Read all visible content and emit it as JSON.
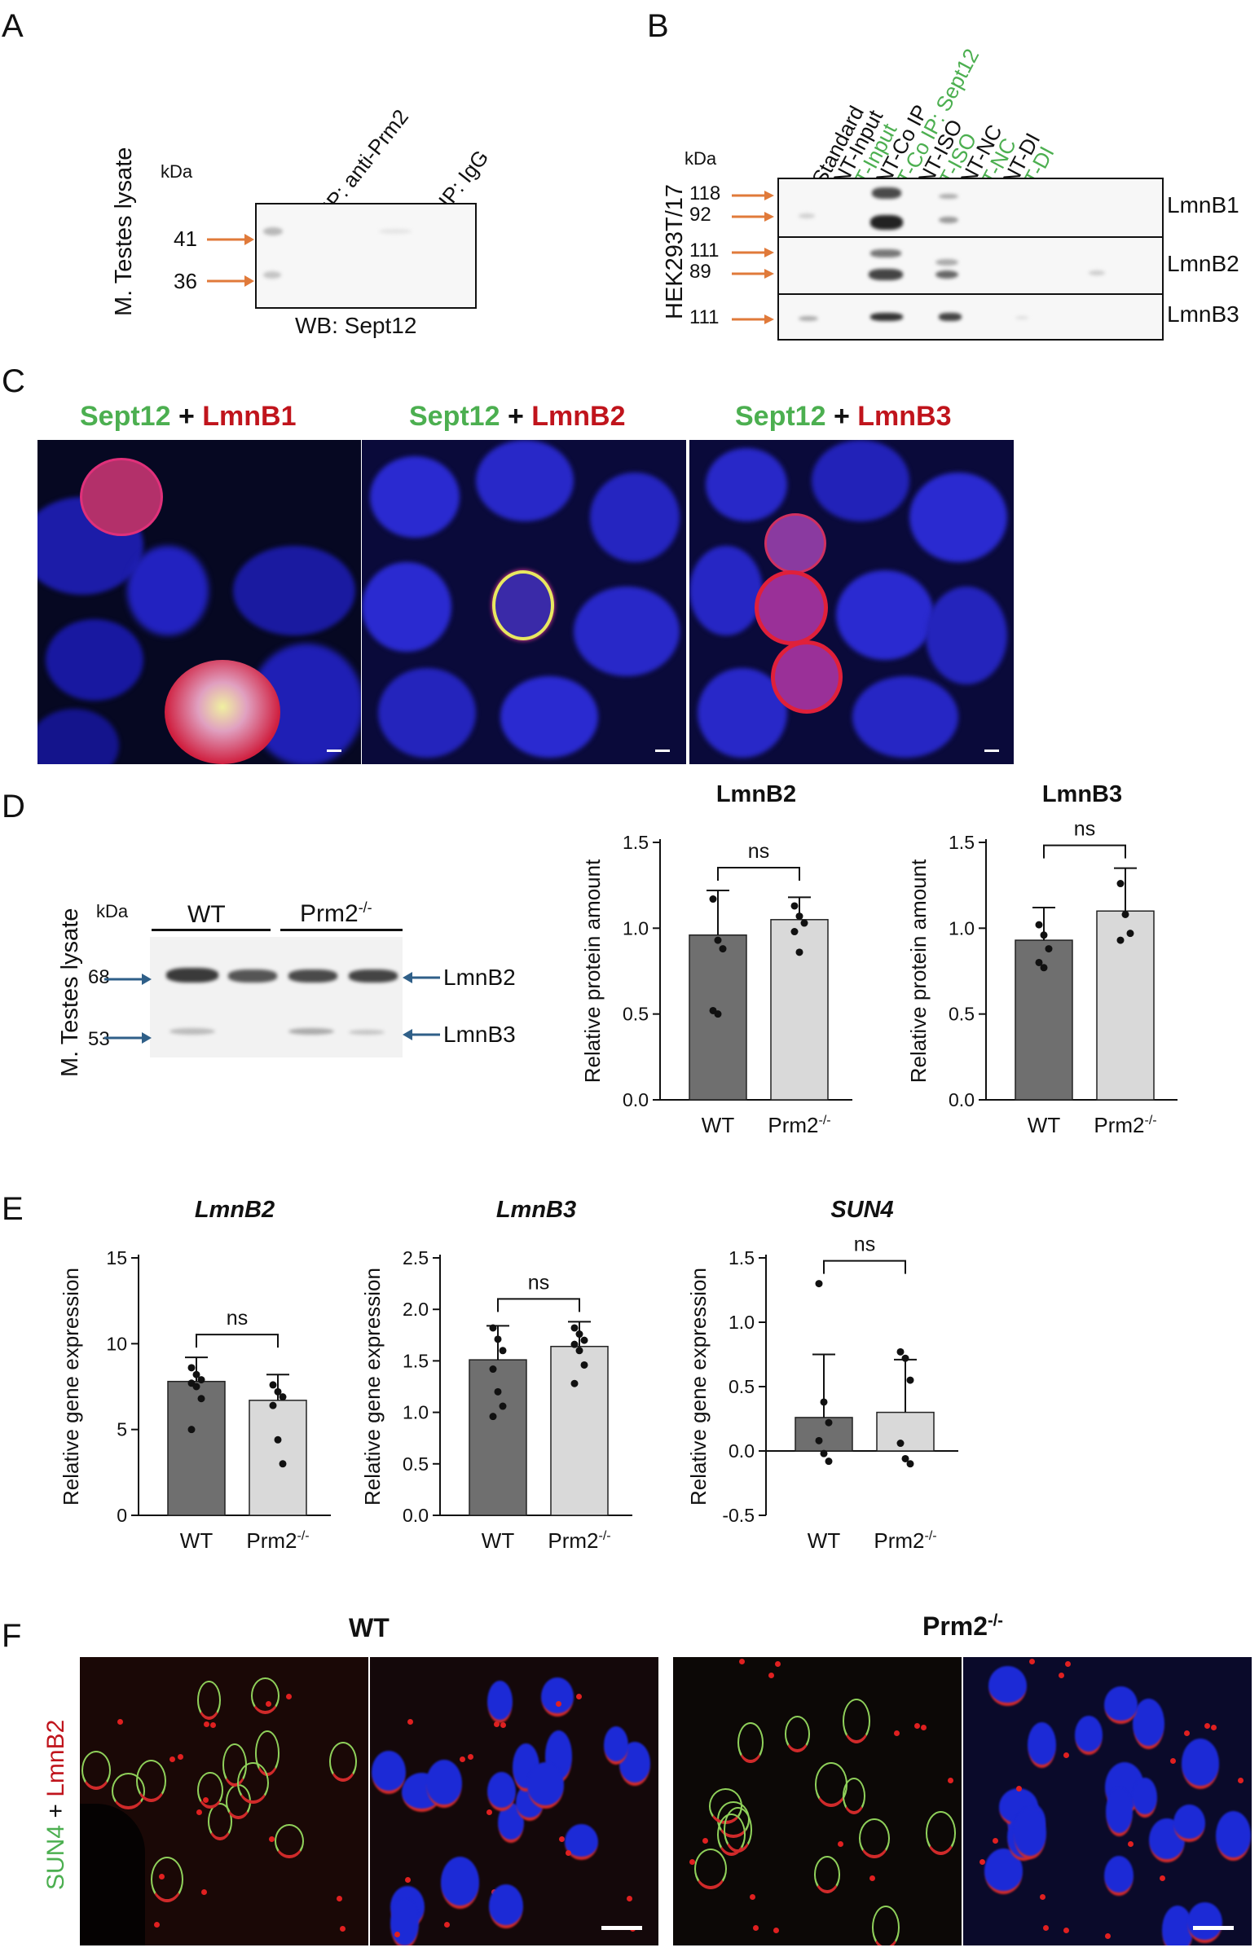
{
  "colors": {
    "green": "#4caf50",
    "red": "#c0141c",
    "arrow_orange": "#e07a3a",
    "arrow_blue": "#2f5f88",
    "bar_dark": "#6f6f6f",
    "bar_light": "#d9d9d9"
  },
  "panel_letters": {
    "a": "A",
    "b": "B",
    "c": "C",
    "d": "D",
    "e": "E",
    "f": "F"
  },
  "panel_a": {
    "side_label": "M. Testes lysate",
    "kda": "kDa",
    "markers": [
      "41",
      "36"
    ],
    "lanes": [
      "IP: anti-Prm2",
      "IP: IgG"
    ],
    "caption": "WB: Sept12"
  },
  "panel_b": {
    "side_label": "HEK293T/17",
    "kda": "kDa",
    "lanes": [
      {
        "label": "Standard",
        "color": "#111111"
      },
      {
        "label": "NT-Input",
        "color": "#111111"
      },
      {
        "label": "T-Input",
        "color": "#4caf50"
      },
      {
        "label": "NT-Co IP",
        "color": "#111111"
      },
      {
        "label": "T-Co IP: Sept12",
        "color": "#4caf50"
      },
      {
        "label": "NT-ISO",
        "color": "#111111"
      },
      {
        "label": "T-ISO",
        "color": "#4caf50"
      },
      {
        "label": "NT-NC",
        "color": "#111111"
      },
      {
        "label": "T-NC",
        "color": "#4caf50"
      },
      {
        "label": "NT-DI",
        "color": "#111111"
      },
      {
        "label": "T-DI",
        "color": "#4caf50"
      }
    ],
    "rows": [
      {
        "name": "LmnB1",
        "markers": [
          "118",
          "92"
        ]
      },
      {
        "name": "LmnB2",
        "markers": [
          "111",
          "89"
        ]
      },
      {
        "name": "LmnB3",
        "markers": [
          "111"
        ]
      }
    ]
  },
  "panel_c": {
    "titles": [
      {
        "a": "Sept12",
        "plus": " + ",
        "b": "LmnB1"
      },
      {
        "a": "Sept12",
        "plus": " + ",
        "b": "LmnB2"
      },
      {
        "a": "Sept12",
        "plus": " + ",
        "b": "LmnB3"
      }
    ]
  },
  "panel_d": {
    "side_label": "M. Testes lysate",
    "kda": "kDa",
    "groups": [
      "WT",
      "Prm2"
    ],
    "group_sup": "-/-",
    "markers": [
      "68",
      "53"
    ],
    "bands": [
      "LmnB2",
      "LmnB3"
    ]
  },
  "panel_f": {
    "row_label_a": "SUN4",
    "row_label_plus": " + ",
    "row_label_b": "LmnB2",
    "titles": [
      "WT",
      "Prm2"
    ],
    "title_sup": "-/-"
  },
  "chart_data": [
    {
      "type": "bar",
      "panel": "D",
      "title": "LmnB2",
      "italic": false,
      "categories": [
        "WT",
        "Prm2-/-"
      ],
      "values": [
        0.96,
        1.05
      ],
      "errors": [
        0.26,
        0.13
      ],
      "points": [
        [
          1.17,
          0.93,
          0.88,
          0.52,
          0.5
        ],
        [
          1.13,
          1.07,
          1.03,
          0.98,
          0.86
        ]
      ],
      "ylabel": "Relative protein amount",
      "ylim": [
        0,
        1.5
      ],
      "yticks": [
        0.0,
        0.5,
        1.0,
        1.5
      ],
      "significance": "ns"
    },
    {
      "type": "bar",
      "panel": "D",
      "title": "LmnB3",
      "italic": false,
      "categories": [
        "WT",
        "Prm2-/-"
      ],
      "values": [
        0.93,
        1.1
      ],
      "errors": [
        0.19,
        0.25
      ],
      "points": [
        [
          1.02,
          0.96,
          0.88,
          0.8,
          0.77
        ],
        [
          1.26,
          1.08,
          0.97,
          0.93
        ]
      ],
      "ylabel": "Relative protein amount",
      "ylim": [
        0,
        1.5
      ],
      "yticks": [
        0.0,
        0.5,
        1.0,
        1.5
      ],
      "significance": "ns"
    },
    {
      "type": "bar",
      "panel": "E",
      "title": "LmnB2",
      "italic": true,
      "categories": [
        "WT",
        "Prm2-/-"
      ],
      "values": [
        7.8,
        6.7
      ],
      "errors": [
        1.4,
        1.5
      ],
      "points": [
        [
          8.6,
          8.2,
          7.9,
          7.7,
          7.5,
          6.8,
          5.0
        ],
        [
          7.6,
          7.2,
          6.9,
          6.4,
          4.4,
          3.0
        ]
      ],
      "ylabel": "Relative gene expression",
      "ylim": [
        0,
        15
      ],
      "yticks": [
        0,
        5,
        10,
        15
      ],
      "significance": "ns"
    },
    {
      "type": "bar",
      "panel": "E",
      "title": "LmnB3",
      "italic": true,
      "categories": [
        "WT",
        "Prm2-/-"
      ],
      "values": [
        1.51,
        1.64
      ],
      "errors": [
        0.33,
        0.24
      ],
      "points": [
        [
          1.82,
          1.71,
          1.6,
          1.42,
          1.2,
          1.06,
          0.96
        ],
        [
          1.82,
          1.76,
          1.7,
          1.66,
          1.6,
          1.46,
          1.28
        ]
      ],
      "ylabel": "Relative gene expression",
      "ylim": [
        0,
        2.5
      ],
      "yticks": [
        0.0,
        0.5,
        1.0,
        1.5,
        2.0,
        2.5
      ],
      "significance": "ns"
    },
    {
      "type": "bar",
      "panel": "E",
      "title": "SUN4",
      "italic": true,
      "categories": [
        "WT",
        "Prm2-/-"
      ],
      "values": [
        0.26,
        0.3
      ],
      "errors": [
        0.49,
        0.41
      ],
      "points": [
        [
          1.3,
          0.38,
          0.22,
          0.08,
          -0.02,
          -0.08
        ],
        [
          0.77,
          0.72,
          0.55,
          0.06,
          -0.06,
          -0.1
        ]
      ],
      "ylabel": "Relative gene expression",
      "ylim": [
        -0.5,
        1.5
      ],
      "yticks": [
        -0.5,
        0.0,
        0.5,
        1.0,
        1.5
      ],
      "significance": "ns"
    }
  ]
}
